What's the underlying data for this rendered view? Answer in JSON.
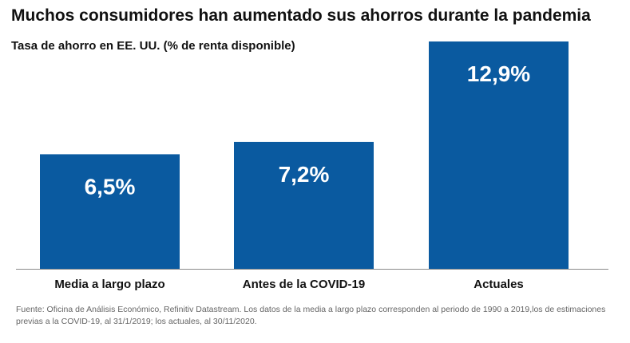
{
  "title": "Muchos consumidores han aumentado sus ahorros durante la pandemia",
  "source": "Fuente: Oficina de Análisis Económico, Refinitiv Datastream. Los datos de la media a largo plazo corresponden al periodo de 1990 a 2019,los de estimaciones previas a la COVID-19, al 31/1/2019; los actuales, al 30/11/2020.",
  "colors": {
    "bar": "#0a5aa0",
    "bar_label": "#ffffff"
  },
  "chart_data": {
    "type": "bar",
    "title": "Tasa de ahorro en EE. UU. (% de renta disponible)",
    "categories": [
      "Media a largo plazo",
      "Antes de la COVID-19",
      "Actuales"
    ],
    "values": [
      6.5,
      7.2,
      12.9
    ],
    "data_labels": [
      "6,5%",
      "7,2%",
      "12,9%"
    ],
    "ylim": [
      0,
      12.9
    ],
    "grid": false,
    "legend": false
  }
}
